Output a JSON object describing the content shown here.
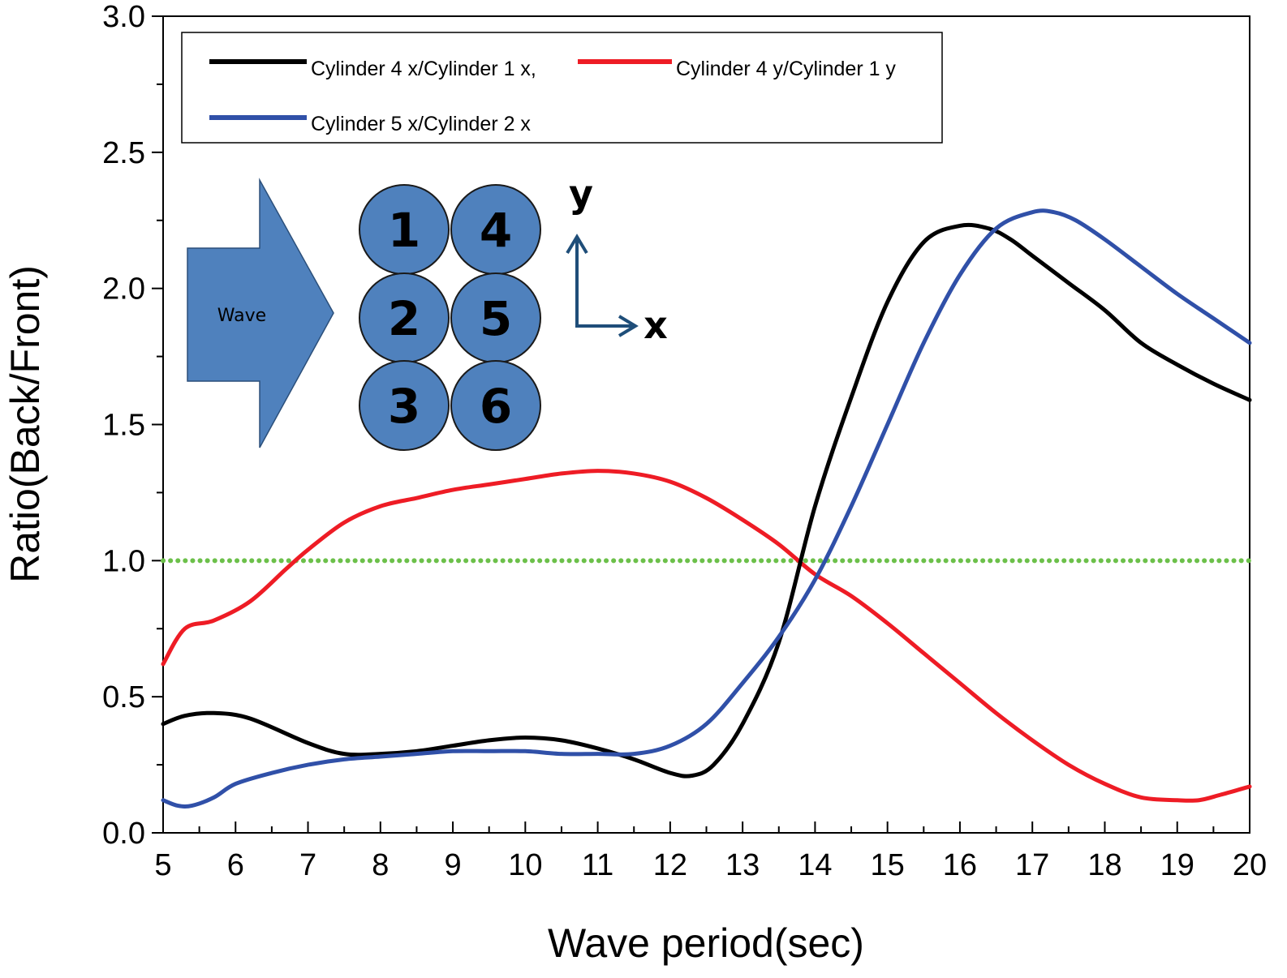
{
  "chart_data": {
    "type": "line",
    "xlabel": "Wave period(sec)",
    "ylabel": "Ratio(Back/Front)",
    "xlim": [
      5,
      20
    ],
    "ylim": [
      0.0,
      3.0
    ],
    "x_ticks": [
      "5",
      "6",
      "7",
      "8",
      "9",
      "10",
      "11",
      "12",
      "13",
      "14",
      "15",
      "16",
      "17",
      "18",
      "19",
      "20"
    ],
    "y_ticks": [
      "0.0",
      "0.5",
      "1.0",
      "1.5",
      "2.0",
      "2.5",
      "3.0"
    ],
    "grid": false,
    "legend_position": "top",
    "series": [
      {
        "name": "Cylinder 4 x/Cylinder 1 x,",
        "color": "#000000",
        "x": [
          5,
          5.3,
          5.7,
          6.2,
          7,
          7.5,
          8,
          8.5,
          9,
          9.5,
          10,
          10.5,
          11,
          11.5,
          12,
          12.3,
          12.6,
          13,
          13.5,
          14,
          14.5,
          15,
          15.5,
          16,
          16.4,
          16.7,
          17,
          17.5,
          18,
          18.5,
          19,
          19.5,
          20
        ],
        "y": [
          0.4,
          0.43,
          0.44,
          0.42,
          0.33,
          0.29,
          0.29,
          0.3,
          0.32,
          0.34,
          0.35,
          0.34,
          0.31,
          0.27,
          0.22,
          0.21,
          0.25,
          0.4,
          0.7,
          1.2,
          1.6,
          1.95,
          2.17,
          2.23,
          2.22,
          2.18,
          2.12,
          2.02,
          1.92,
          1.8,
          1.72,
          1.65,
          1.59
        ]
      },
      {
        "name": "Cylinder 4 y/Cylinder 1 y",
        "color": "#ee1c25",
        "x": [
          5,
          5.3,
          5.7,
          6.2,
          6.7,
          7,
          7.5,
          8,
          8.5,
          9,
          9.5,
          10,
          10.5,
          11,
          11.5,
          12,
          12.5,
          13,
          13.5,
          14,
          14.5,
          15,
          15.5,
          16,
          16.5,
          17,
          17.5,
          18,
          18.5,
          19,
          19.3,
          19.6,
          20
        ],
        "y": [
          0.62,
          0.75,
          0.78,
          0.85,
          0.97,
          1.04,
          1.14,
          1.2,
          1.23,
          1.26,
          1.28,
          1.3,
          1.32,
          1.33,
          1.32,
          1.29,
          1.23,
          1.15,
          1.06,
          0.95,
          0.87,
          0.77,
          0.66,
          0.55,
          0.44,
          0.34,
          0.25,
          0.18,
          0.13,
          0.12,
          0.12,
          0.14,
          0.17
        ]
      },
      {
        "name": "Cylinder 5 x/Cylinder 2 x",
        "color": "#3050a8",
        "x": [
          5,
          5.2,
          5.4,
          5.7,
          6,
          6.5,
          7,
          7.5,
          8,
          8.5,
          9,
          9.5,
          10,
          10.5,
          11,
          11.5,
          12,
          12.5,
          13,
          13.5,
          14,
          14.5,
          15,
          15.5,
          16,
          16.5,
          17,
          17.3,
          17.6,
          18,
          18.5,
          19,
          19.5,
          20
        ],
        "y": [
          0.12,
          0.1,
          0.1,
          0.13,
          0.18,
          0.22,
          0.25,
          0.27,
          0.28,
          0.29,
          0.3,
          0.3,
          0.3,
          0.29,
          0.29,
          0.29,
          0.32,
          0.4,
          0.55,
          0.72,
          0.93,
          1.2,
          1.5,
          1.8,
          2.05,
          2.22,
          2.28,
          2.28,
          2.25,
          2.18,
          2.08,
          1.98,
          1.89,
          1.8
        ]
      },
      {
        "name": "",
        "color": "#6cc04a",
        "style": "dotted",
        "x": [
          5,
          20
        ],
        "y": [
          1.0,
          1.0
        ]
      }
    ]
  },
  "inset": {
    "arrow_label": "Wave",
    "cylinders": [
      "1",
      "4",
      "2",
      "5",
      "3",
      "6"
    ],
    "axis_y_label": "y",
    "axis_x_label": "x",
    "fill_color": "#4f81bd",
    "axis_color": "#1f4e79"
  }
}
